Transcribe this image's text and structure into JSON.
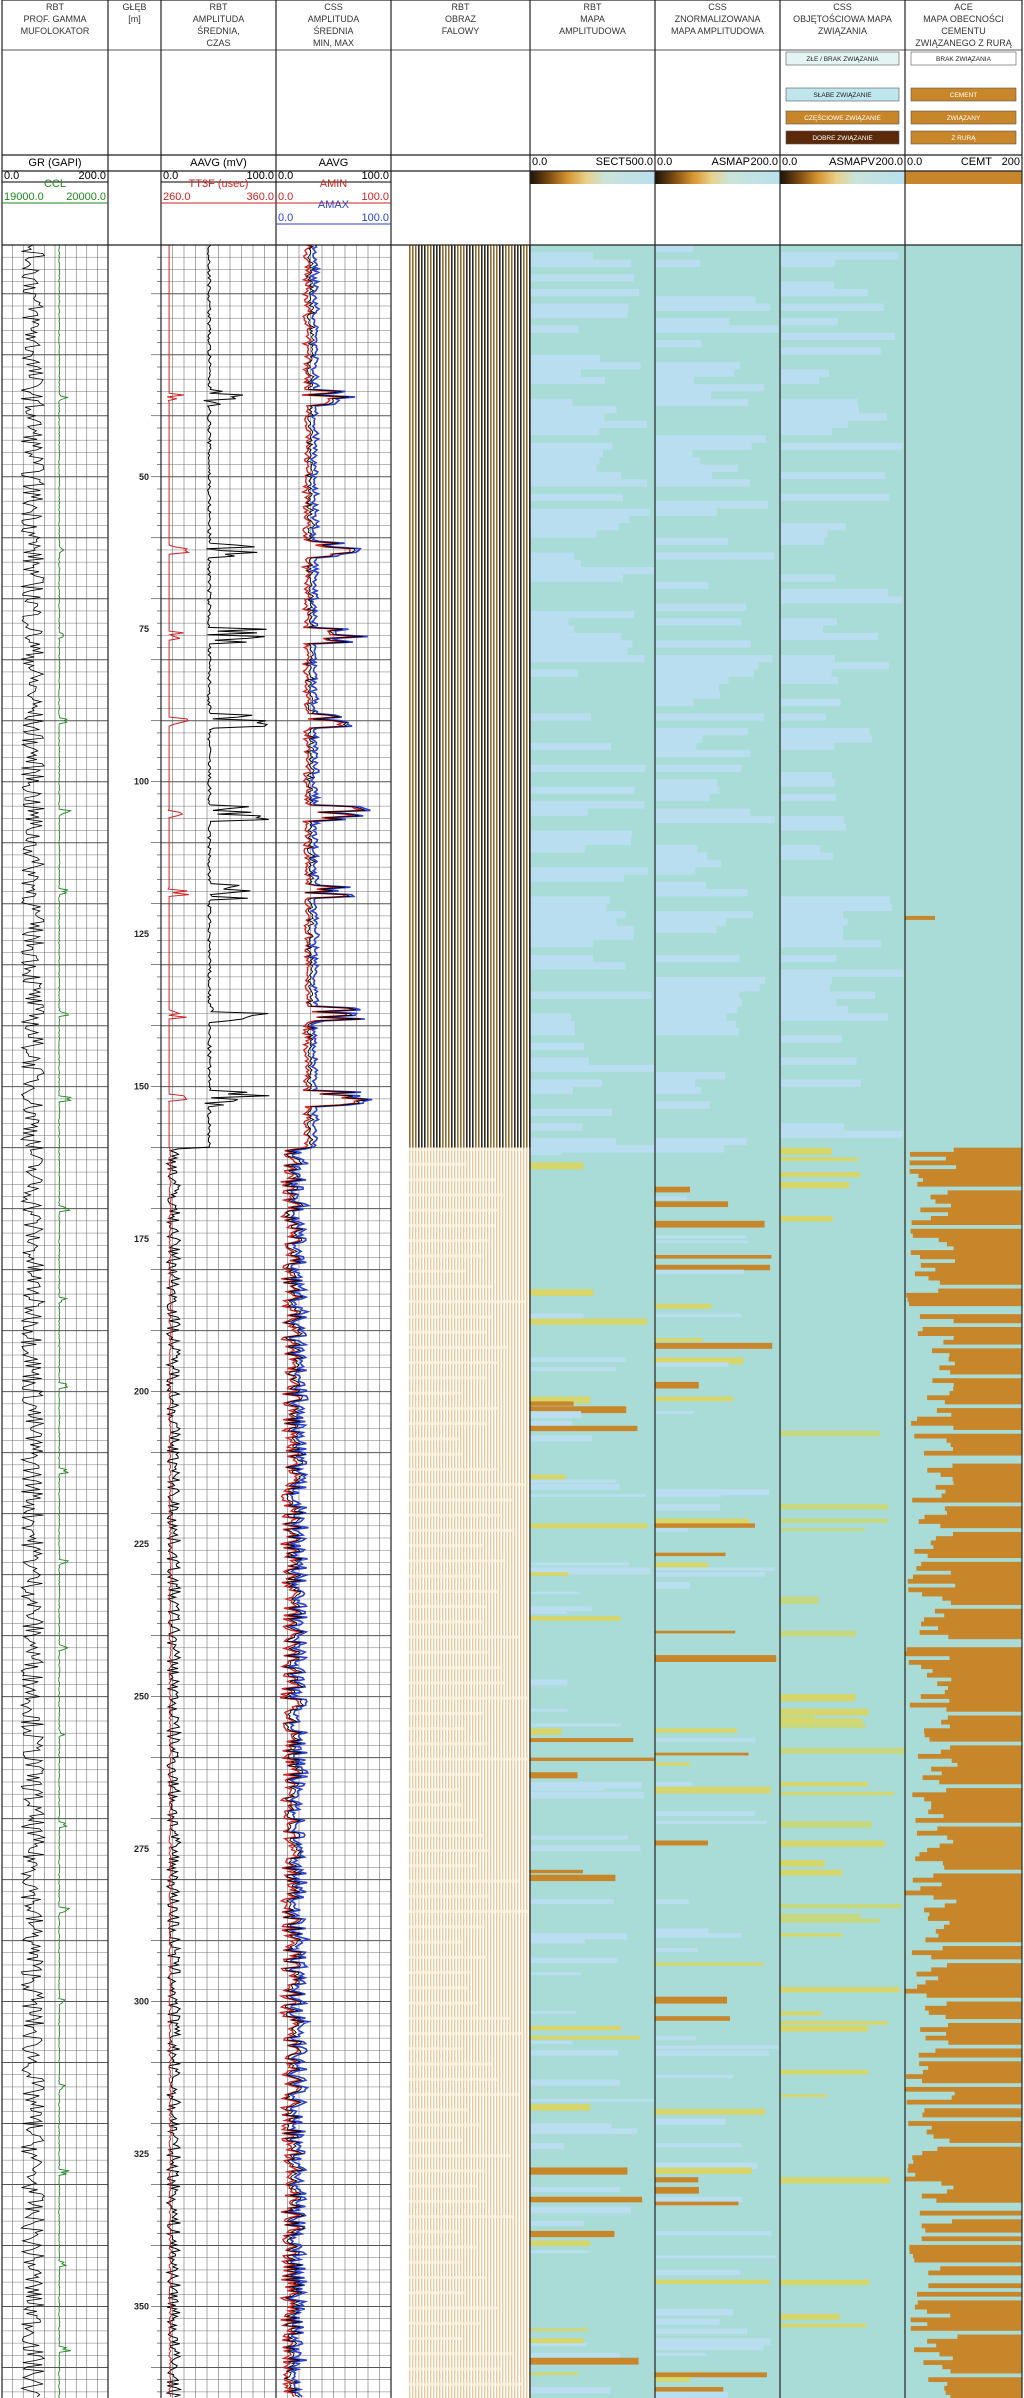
{
  "chart_data": {
    "type": "well-log",
    "depth_unit": "[m]",
    "depth_ticks": [
      50,
      75,
      100,
      125,
      150,
      175,
      200,
      225,
      250,
      275,
      300,
      325,
      350
    ],
    "depth_range": [
      12,
      365
    ],
    "tracks": [
      {
        "id": "t1",
        "header": [
          "RBT",
          "PROF. GAMMA",
          "MUFOLOKATOR"
        ],
        "curves": [
          {
            "name": "GR (GAPI)",
            "min": "0.0",
            "max": "200.0",
            "color": "#000000"
          },
          {
            "name": "CCL",
            "min": "19000.0",
            "max": "20000.0",
            "color": "#1a8a1a"
          }
        ]
      },
      {
        "id": "t2",
        "header": [
          "GŁĘB",
          "[m]"
        ]
      },
      {
        "id": "t3",
        "header": [
          "RBT",
          "AMPLITUDA",
          "ŚREDNIA,",
          "CZAS"
        ],
        "curves": [
          {
            "name": "AAVG (mV)",
            "min": "0.0",
            "max": "100.0",
            "color": "#000000"
          },
          {
            "name": "TT3F (usec)",
            "min": "260.0",
            "max": "360.0",
            "color": "#d42020"
          }
        ]
      },
      {
        "id": "t4",
        "header": [
          "CSS",
          "AMPLITUDA",
          "ŚREDNIA",
          "MIN, MAX"
        ],
        "curves": [
          {
            "name": "AAVG",
            "min": "0.0",
            "max": "100.0",
            "color": "#000000"
          },
          {
            "name": "AMIN",
            "min": "0.0",
            "max": "100.0",
            "color": "#d42020"
          },
          {
            "name": "AMAX",
            "min": "0.0",
            "max": "100.0",
            "color": "#2a3fd0"
          }
        ]
      },
      {
        "id": "t5",
        "header": [
          "RBT",
          "OBRAZ",
          "FALOWY"
        ]
      },
      {
        "id": "t6",
        "header": [
          "RBT",
          "MAPA",
          "AMPLITUDOWA"
        ],
        "scale": {
          "min": "0.0",
          "name": "SECT",
          "max": "500.0"
        }
      },
      {
        "id": "t7",
        "header": [
          "CSS",
          "ZNORMALIZOWANA",
          "MAPA AMPLITUDOWA"
        ],
        "scale": {
          "min": "0.0",
          "name": "ASMAP",
          "max": "200.0"
        }
      },
      {
        "id": "t8",
        "header": [
          "CSS",
          "OBJĘTOŚCIOWA MAPA",
          "ZWIĄZANIA"
        ],
        "scale": {
          "min": "0.0",
          "name": "ASMAPV",
          "max": "200.0"
        },
        "legend": [
          "ZŁE / BRAK ZWIĄZANIA",
          "SŁABE ZWIĄZANIE",
          "CZĘŚCIOWE ZWIĄZANIE",
          "DOBRE ZWIĄZANIE"
        ]
      },
      {
        "id": "t9",
        "header": [
          "ACE",
          "MAPA OBECNOŚCI",
          "CEMENTU",
          "ZWIĄZANEGO Z RURĄ"
        ],
        "scale": {
          "min": "0.0",
          "name": "CEMT",
          "max": "200"
        },
        "legend": [
          "BRAK ZWIĄZANIA",
          "CEMENT",
          "ZWIĄZANY",
          "Z RURĄ"
        ]
      }
    ],
    "collar_depths": [
      37,
      62,
      76,
      90,
      105,
      118,
      138,
      152
    ],
    "cement_top_depth": 160
  },
  "colors": {
    "grid": "#555555",
    "map_teal": "#a9dcd6",
    "map_lightblue": "#b9def0",
    "map_orange": "#c8862a",
    "map_yellowgreen": "#d6d66a",
    "cement": "#c8862a",
    "wave_dark": "#1a1208"
  }
}
